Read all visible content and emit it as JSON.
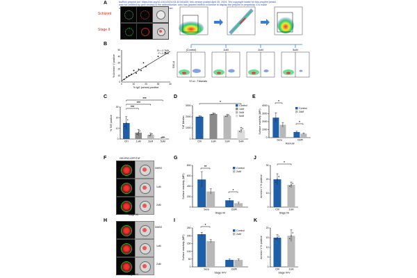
{
  "header": {
    "line1": "bioRxiv preprint doi: https://doi.org/10.1101/2024.04.30.591830; this version posted April 30, 2024. The copyright holder for this preprint (which",
    "line2": "was not certified by peer review) is the author/funder, who has granted bioRxiv a license to display the preprint in perpetuity. It is made",
    "line3": "available under aCC-BY 4.0 International license."
  },
  "panels": {
    "A": "A",
    "B": "B",
    "C": "C",
    "D": "D",
    "E": "E",
    "F": "F",
    "G": "G",
    "H": "H",
    "I": "I",
    "J": "J",
    "K": "K"
  },
  "panelA": {
    "row1": "Schizont",
    "row2": "Stage II",
    "flow_labels": [
      "(Control)",
      "1uM",
      "2uM",
      "5uM"
    ],
    "yaxis": "SSC-A",
    "xaxis": "YG-A :: Tdtomato"
  },
  "panelB": {
    "xlabel": "% IgG (serum) positive",
    "ylabel": "% Annexin V positive",
    "r2": "R² = 0.7465",
    "p": "P < 0.0006",
    "points": [
      [
        2,
        4
      ],
      [
        4,
        8
      ],
      [
        6,
        10
      ],
      [
        8,
        12
      ],
      [
        10,
        18
      ],
      [
        12,
        14
      ],
      [
        14,
        20
      ],
      [
        16,
        18
      ],
      [
        18,
        30
      ],
      [
        20,
        24
      ],
      [
        30,
        40
      ],
      [
        36,
        46
      ]
    ]
  },
  "chart_data": [
    {
      "type": "bar",
      "panel": "C",
      "categories": [
        "Ctrl",
        "1uM",
        "2uM",
        "5uM"
      ],
      "values": [
        15,
        6,
        4,
        1.5
      ],
      "errors": [
        6,
        3,
        1.5,
        0.5
      ],
      "ylabel": "% TdT positive",
      "ylim": [
        0,
        30
      ],
      "yticks": [
        0,
        10,
        20,
        30
      ],
      "sig": [
        "***",
        "***",
        "***"
      ]
    },
    {
      "type": "bar",
      "panel": "D",
      "categories": [
        "Ctrl",
        "1uM",
        "2uM",
        "5uM"
      ],
      "values": [
        2000,
        2250,
        2100,
        800
      ],
      "errors": [
        80,
        80,
        120,
        250
      ],
      "ylabel": "TdT Median",
      "ylim": [
        0,
        3000
      ],
      "yticks": [
        0,
        1000,
        2000,
        3000
      ],
      "legend": [
        "Control",
        "1uM",
        "2uM",
        "5uM"
      ],
      "sig": [
        "*"
      ]
    },
    {
      "type": "bar",
      "panel": "E",
      "categories": [
        "Sera",
        "CBPI"
      ],
      "group_label": "Asexual",
      "series": [
        {
          "name": "Control",
          "values": [
            2500,
            700
          ]
        },
        {
          "name": "2uM",
          "values": [
            1600,
            500
          ]
        }
      ],
      "errors": [
        [
          600,
          100
        ],
        [
          300,
          80
        ]
      ],
      "ylabel": "Surface reactivity (MFI)",
      "ylim": [
        0,
        4000
      ],
      "yticks": [
        0,
        1000,
        2000,
        3000,
        4000
      ],
      "sig": [
        "*",
        "*"
      ]
    },
    {
      "type": "bar",
      "panel": "G",
      "categories": [
        "Sera",
        "CBPI"
      ],
      "group_label": "Stage I/II",
      "series": [
        {
          "name": "Control",
          "values": [
            530,
            130
          ]
        },
        {
          "name": "2uM",
          "values": [
            300,
            75
          ]
        }
      ],
      "errors": [
        [
          150,
          40
        ],
        [
          50,
          20
        ]
      ],
      "ylabel": "Surface reactivity (MFI)",
      "ylim": [
        0,
        800
      ],
      "yticks": [
        0,
        200,
        400,
        600,
        800
      ],
      "sig": [
        "**",
        "*"
      ]
    },
    {
      "type": "bar",
      "panel": "J",
      "categories": [
        "Ctrl",
        "2uM"
      ],
      "group_label": "Stage I/II",
      "values": [
        20,
        16
      ],
      "errors": [
        4,
        2
      ],
      "ylabel": "Annexin V % positive",
      "ylim": [
        0,
        30
      ],
      "yticks": [
        0,
        10,
        20,
        30
      ],
      "sig": [
        "*"
      ]
    },
    {
      "type": "bar",
      "panel": "I",
      "categories": [
        "Sera",
        "CBPI"
      ],
      "group_label": "Stage IV/V",
      "series": [
        {
          "name": "Control",
          "values": [
            210,
            45
          ]
        },
        {
          "name": "2uM",
          "values": [
            165,
            45
          ]
        }
      ],
      "errors": [
        [
          12,
          6
        ],
        [
          10,
          6
        ]
      ],
      "ylabel": "Surface reactivity (MFI)",
      "ylim": [
        0,
        250
      ],
      "yticks": [
        0,
        50,
        100,
        150,
        200,
        250
      ],
      "sig": [
        "*"
      ]
    },
    {
      "type": "bar",
      "panel": "K",
      "categories": [
        "Ctrl",
        "2uM"
      ],
      "group_label": "Stage IV/V",
      "values": [
        15,
        16
      ],
      "errors": [
        1.5,
        3
      ],
      "ylabel": "Annexin V % positive",
      "ylim": [
        0,
        20
      ],
      "yticks": [
        0,
        5,
        10,
        15,
        20
      ]
    }
  ],
  "panelF": {
    "title": "GEXP02-GFP/TdT",
    "rows": [
      "DMSO",
      "1uM",
      "2uM"
    ],
    "stage": "Stage I/II"
  },
  "panelH": {
    "rows": [
      "DMSO",
      "1uM",
      "2uM"
    ],
    "stage": "Stage IV/V"
  },
  "colors": {
    "control": "#1f5fa8",
    "treated": "#b8b8b8",
    "treated_dark": "#8a8a8a",
    "light": "#dcdcdc"
  }
}
